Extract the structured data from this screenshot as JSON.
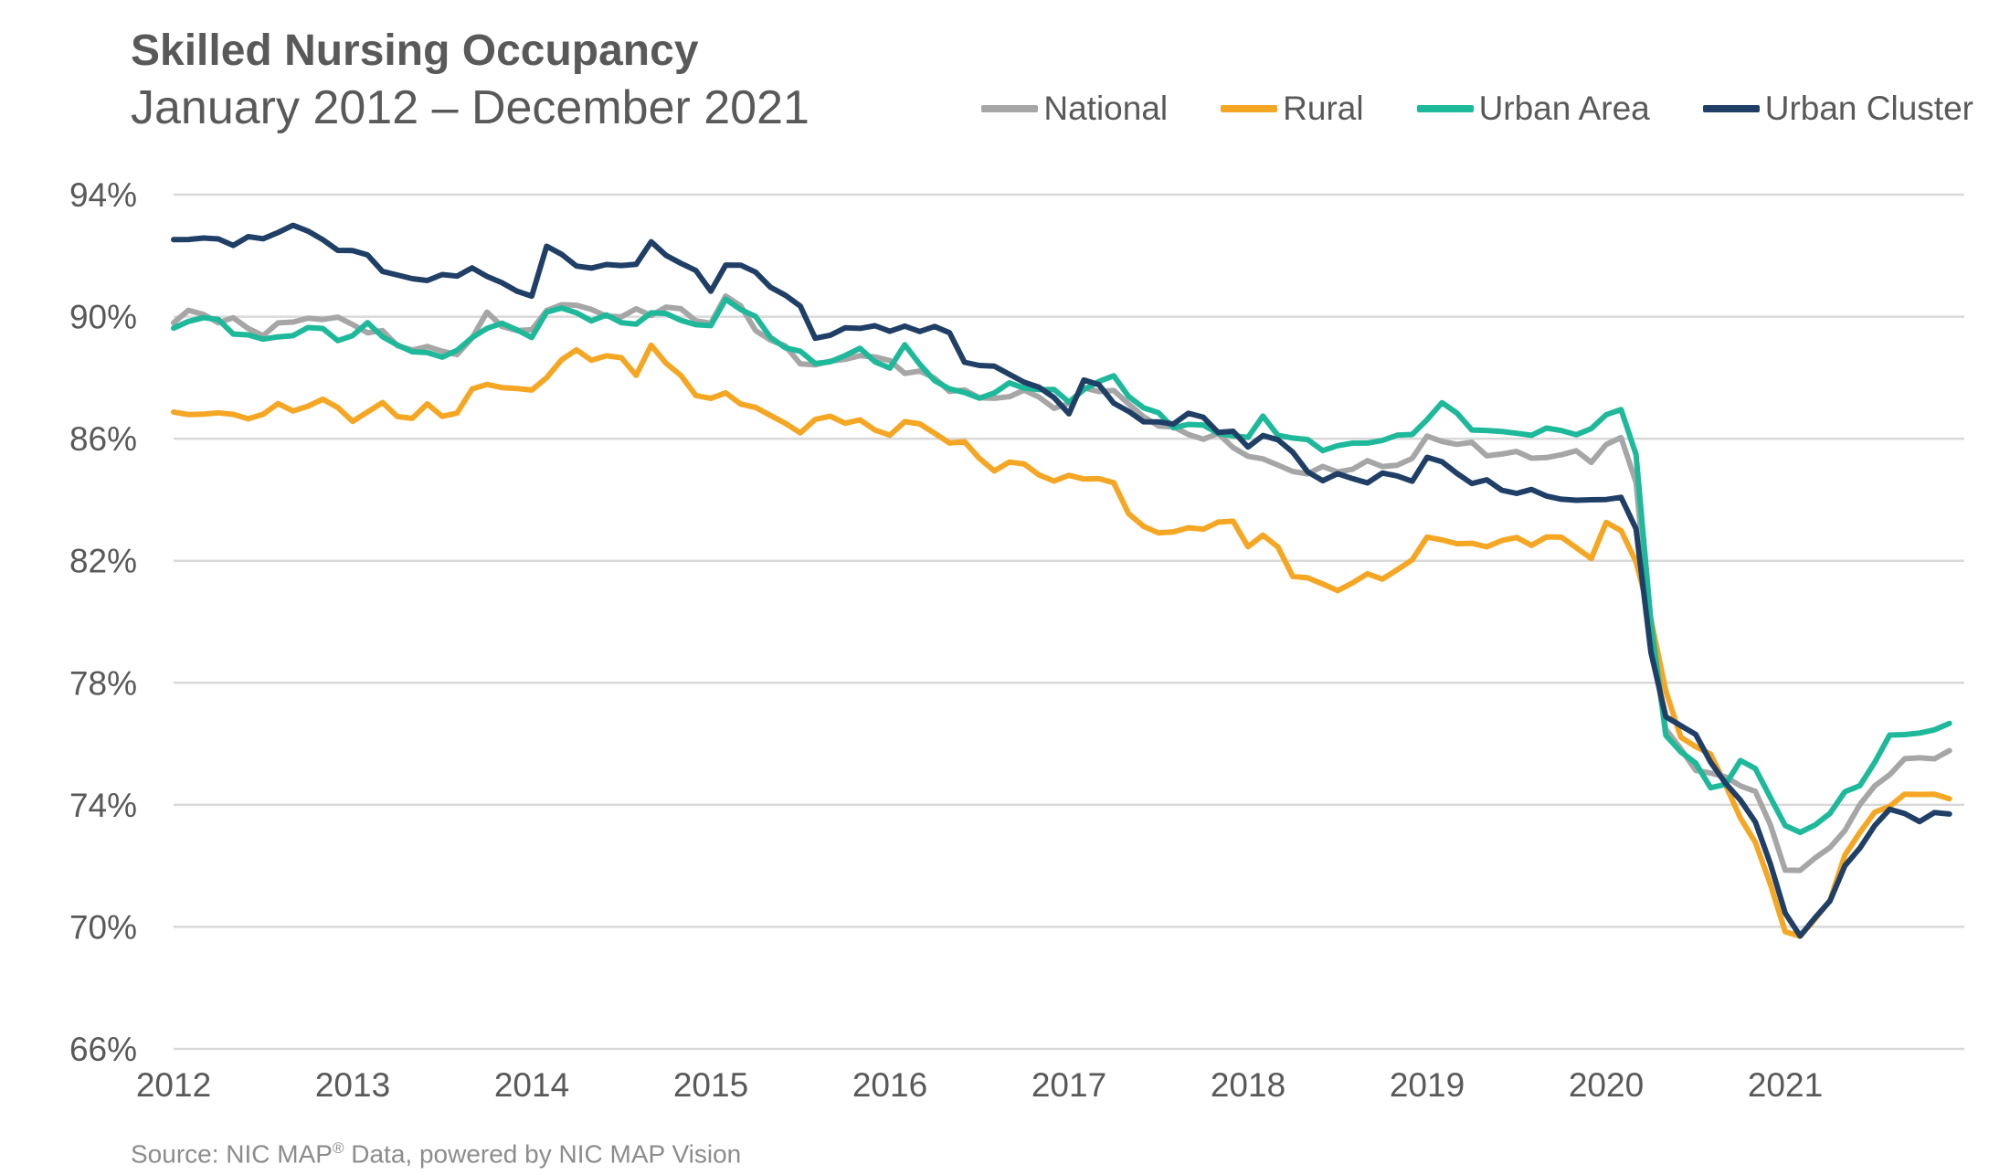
{
  "chart_data": {
    "type": "line",
    "title": "Skilled Nursing Occupancy",
    "subtitle": "January 2012 – December 2021",
    "source": {
      "prefix": "Source: NIC MAP",
      "sup": "®",
      "suffix": " Data, powered by NIC MAP Vision"
    },
    "ylim": [
      66,
      94
    ],
    "yticks": [
      94,
      90,
      86,
      82,
      78,
      74,
      70,
      66
    ],
    "ytick_labels": [
      "94%",
      "90%",
      "86%",
      "82%",
      "78%",
      "74%",
      "70%",
      "66%"
    ],
    "xlim": [
      2012,
      2022
    ],
    "xticks": [
      2012,
      2013,
      2014,
      2015,
      2016,
      2017,
      2018,
      2019,
      2020,
      2021
    ],
    "xtick_labels": [
      "2012",
      "2013",
      "2014",
      "2015",
      "2016",
      "2017",
      "2018",
      "2019",
      "2020",
      "2021"
    ],
    "grid": "horizontal",
    "legend": "top-right",
    "series": [
      {
        "name": "National",
        "color": "#A6A6A6",
        "knots": [
          [
            2012.0,
            89.8
          ],
          [
            2012.1,
            90.2
          ],
          [
            2012.5,
            89.5
          ],
          [
            2012.75,
            90.0
          ],
          [
            2013.0,
            89.8
          ],
          [
            2013.3,
            89.0
          ],
          [
            2013.6,
            88.8
          ],
          [
            2013.75,
            90.0
          ],
          [
            2014.0,
            89.4
          ],
          [
            2014.1,
            90.5
          ],
          [
            2014.5,
            90.0
          ],
          [
            2014.75,
            90.3
          ],
          [
            2015.0,
            89.8
          ],
          [
            2015.1,
            90.8
          ],
          [
            2015.3,
            89.3
          ],
          [
            2015.6,
            88.3
          ],
          [
            2015.8,
            88.8
          ],
          [
            2016.0,
            88.5
          ],
          [
            2016.3,
            87.8
          ],
          [
            2016.5,
            87.3
          ],
          [
            2016.75,
            87.5
          ],
          [
            2017.0,
            87.0
          ],
          [
            2017.1,
            87.8
          ],
          [
            2017.25,
            87.5
          ],
          [
            2017.4,
            86.8
          ],
          [
            2017.6,
            86.2
          ],
          [
            2017.8,
            86.1
          ],
          [
            2018.0,
            85.5
          ],
          [
            2018.2,
            85.0
          ],
          [
            2018.4,
            84.9
          ],
          [
            2018.6,
            85.1
          ],
          [
            2018.9,
            85.2
          ],
          [
            2019.0,
            86.0
          ],
          [
            2019.1,
            86.0
          ],
          [
            2019.3,
            85.6
          ],
          [
            2019.6,
            85.4
          ],
          [
            2019.85,
            85.5
          ],
          [
            2019.95,
            85.3
          ],
          [
            2020.0,
            85.8
          ],
          [
            2020.1,
            85.9
          ],
          [
            2020.17,
            84.5
          ],
          [
            2020.25,
            79.5
          ],
          [
            2020.33,
            76.5
          ],
          [
            2020.5,
            75.2
          ],
          [
            2020.67,
            74.8
          ],
          [
            2020.8,
            74.8
          ],
          [
            2020.9,
            73.5
          ],
          [
            2021.0,
            72.0
          ],
          [
            2021.08,
            71.8
          ],
          [
            2021.25,
            72.6
          ],
          [
            2021.4,
            73.8
          ],
          [
            2021.6,
            75.3
          ],
          [
            2021.75,
            75.5
          ],
          [
            2021.9,
            75.7
          ],
          [
            2021.99,
            76.0
          ]
        ]
      },
      {
        "name": "Rural",
        "color": "#F5A623",
        "knots": [
          [
            2012.0,
            86.7
          ],
          [
            2012.1,
            86.9
          ],
          [
            2012.4,
            86.7
          ],
          [
            2012.6,
            87.0
          ],
          [
            2012.9,
            87.2
          ],
          [
            2013.0,
            86.6
          ],
          [
            2013.2,
            87.2
          ],
          [
            2013.3,
            86.5
          ],
          [
            2013.4,
            87.0
          ],
          [
            2013.6,
            86.8
          ],
          [
            2013.7,
            87.9
          ],
          [
            2014.0,
            87.5
          ],
          [
            2014.1,
            88.3
          ],
          [
            2014.25,
            88.8
          ],
          [
            2014.5,
            88.6
          ],
          [
            2014.6,
            88.0
          ],
          [
            2014.67,
            89.2
          ],
          [
            2014.75,
            88.4
          ],
          [
            2015.0,
            87.2
          ],
          [
            2015.1,
            87.5
          ],
          [
            2015.3,
            86.8
          ],
          [
            2015.5,
            86.3
          ],
          [
            2015.7,
            86.8
          ],
          [
            2015.9,
            86.3
          ],
          [
            2016.0,
            86.2
          ],
          [
            2016.1,
            86.6
          ],
          [
            2016.4,
            85.8
          ],
          [
            2016.6,
            85.0
          ],
          [
            2016.75,
            85.2
          ],
          [
            2016.9,
            84.6
          ],
          [
            2017.0,
            84.7
          ],
          [
            2017.2,
            84.8
          ],
          [
            2017.35,
            83.5
          ],
          [
            2017.5,
            82.8
          ],
          [
            2017.7,
            83.2
          ],
          [
            2017.8,
            82.9
          ],
          [
            2017.9,
            83.6
          ],
          [
            2018.0,
            82.5
          ],
          [
            2018.15,
            82.8
          ],
          [
            2018.25,
            81.5
          ],
          [
            2018.5,
            81.1
          ],
          [
            2018.7,
            81.5
          ],
          [
            2018.85,
            81.7
          ],
          [
            2018.95,
            82.0
          ],
          [
            2019.0,
            82.9
          ],
          [
            2019.15,
            82.5
          ],
          [
            2019.4,
            82.6
          ],
          [
            2019.6,
            82.7
          ],
          [
            2019.8,
            82.7
          ],
          [
            2019.95,
            81.9
          ],
          [
            2020.0,
            83.2
          ],
          [
            2020.1,
            82.9
          ],
          [
            2020.2,
            81.5
          ],
          [
            2020.33,
            77.8
          ],
          [
            2020.4,
            76.3
          ],
          [
            2020.5,
            75.8
          ],
          [
            2020.6,
            75.6
          ],
          [
            2020.75,
            73.6
          ],
          [
            2020.85,
            72.5
          ],
          [
            2021.0,
            70.0
          ],
          [
            2021.08,
            69.5
          ],
          [
            2021.25,
            71.0
          ],
          [
            2021.35,
            72.5
          ],
          [
            2021.5,
            73.8
          ],
          [
            2021.7,
            74.3
          ],
          [
            2021.83,
            74.5
          ],
          [
            2021.92,
            74.0
          ],
          [
            2021.99,
            74.1
          ]
        ]
      },
      {
        "name": "Urban Area",
        "color": "#1DB99A",
        "knots": [
          [
            2012.0,
            89.5
          ],
          [
            2012.1,
            90.1
          ],
          [
            2012.5,
            89.2
          ],
          [
            2012.75,
            89.6
          ],
          [
            2013.0,
            89.3
          ],
          [
            2013.1,
            89.8
          ],
          [
            2013.3,
            88.8
          ],
          [
            2013.6,
            88.8
          ],
          [
            2013.75,
            89.8
          ],
          [
            2014.0,
            89.4
          ],
          [
            2014.1,
            90.3
          ],
          [
            2014.5,
            89.8
          ],
          [
            2014.75,
            90.1
          ],
          [
            2015.0,
            89.6
          ],
          [
            2015.1,
            90.8
          ],
          [
            2015.3,
            89.5
          ],
          [
            2015.6,
            88.4
          ],
          [
            2015.8,
            88.9
          ],
          [
            2016.0,
            88.4
          ],
          [
            2016.1,
            89.0
          ],
          [
            2016.3,
            87.6
          ],
          [
            2016.5,
            87.4
          ],
          [
            2016.75,
            87.8
          ],
          [
            2017.0,
            87.3
          ],
          [
            2017.1,
            87.7
          ],
          [
            2017.25,
            88.0
          ],
          [
            2017.45,
            86.8
          ],
          [
            2017.6,
            86.5
          ],
          [
            2017.8,
            86.3
          ],
          [
            2018.0,
            86.0
          ],
          [
            2018.1,
            86.8
          ],
          [
            2018.2,
            86.0
          ],
          [
            2018.5,
            85.7
          ],
          [
            2018.75,
            86.0
          ],
          [
            2018.95,
            86.1
          ],
          [
            2019.0,
            86.8
          ],
          [
            2019.1,
            87.1
          ],
          [
            2019.3,
            86.2
          ],
          [
            2019.6,
            86.2
          ],
          [
            2019.85,
            86.3
          ],
          [
            2019.95,
            86.1
          ],
          [
            2020.0,
            86.8
          ],
          [
            2020.1,
            87.1
          ],
          [
            2020.17,
            85.4
          ],
          [
            2020.25,
            80.0
          ],
          [
            2020.33,
            76.3
          ],
          [
            2020.5,
            75.2
          ],
          [
            2020.6,
            74.5
          ],
          [
            2020.67,
            74.8
          ],
          [
            2020.8,
            75.6
          ],
          [
            2020.9,
            74.5
          ],
          [
            2021.0,
            73.3
          ],
          [
            2021.08,
            73.0
          ],
          [
            2021.25,
            73.8
          ],
          [
            2021.4,
            74.6
          ],
          [
            2021.6,
            76.3
          ],
          [
            2021.75,
            76.4
          ],
          [
            2021.9,
            76.5
          ],
          [
            2021.99,
            76.8
          ]
        ]
      },
      {
        "name": "Urban Cluster",
        "color": "#1F3F66",
        "knots": [
          [
            2012.0,
            92.6
          ],
          [
            2012.2,
            92.5
          ],
          [
            2012.35,
            92.5
          ],
          [
            2012.5,
            92.5
          ],
          [
            2012.6,
            93.0
          ],
          [
            2012.8,
            92.7
          ],
          [
            2012.95,
            92.1
          ],
          [
            2013.1,
            92.0
          ],
          [
            2013.25,
            91.2
          ],
          [
            2013.4,
            91.3
          ],
          [
            2013.6,
            91.3
          ],
          [
            2013.7,
            91.8
          ],
          [
            2013.8,
            91.0
          ],
          [
            2014.0,
            90.8
          ],
          [
            2014.1,
            92.4
          ],
          [
            2014.3,
            91.5
          ],
          [
            2014.45,
            91.7
          ],
          [
            2014.6,
            91.8
          ],
          [
            2014.67,
            92.3
          ],
          [
            2014.8,
            92.0
          ],
          [
            2015.0,
            90.9
          ],
          [
            2015.1,
            91.9
          ],
          [
            2015.3,
            91.2
          ],
          [
            2015.45,
            90.6
          ],
          [
            2015.6,
            89.3
          ],
          [
            2015.8,
            89.6
          ],
          [
            2015.9,
            89.8
          ],
          [
            2016.0,
            89.5
          ],
          [
            2016.2,
            89.7
          ],
          [
            2016.3,
            89.6
          ],
          [
            2016.45,
            88.4
          ],
          [
            2016.6,
            88.3
          ],
          [
            2016.8,
            87.8
          ],
          [
            2016.9,
            87.3
          ],
          [
            2017.0,
            87.0
          ],
          [
            2017.1,
            88.0
          ],
          [
            2017.25,
            87.3
          ],
          [
            2017.4,
            86.5
          ],
          [
            2017.6,
            86.6
          ],
          [
            2017.7,
            86.8
          ],
          [
            2017.8,
            86.5
          ],
          [
            2017.95,
            86.0
          ],
          [
            2018.0,
            85.7
          ],
          [
            2018.1,
            86.3
          ],
          [
            2018.25,
            85.5
          ],
          [
            2018.35,
            84.8
          ],
          [
            2018.5,
            84.7
          ],
          [
            2018.7,
            84.7
          ],
          [
            2018.85,
            84.8
          ],
          [
            2018.95,
            84.6
          ],
          [
            2019.0,
            85.4
          ],
          [
            2019.1,
            85.1
          ],
          [
            2019.3,
            84.5
          ],
          [
            2019.5,
            84.3
          ],
          [
            2019.7,
            84.1
          ],
          [
            2019.85,
            84.0
          ],
          [
            2019.95,
            83.8
          ],
          [
            2020.0,
            84.1
          ],
          [
            2020.08,
            84.2
          ],
          [
            2020.17,
            83.0
          ],
          [
            2020.25,
            79.0
          ],
          [
            2020.33,
            76.9
          ],
          [
            2020.5,
            76.3
          ],
          [
            2020.6,
            75.3
          ],
          [
            2020.75,
            74.0
          ],
          [
            2020.85,
            73.5
          ],
          [
            2021.0,
            70.3
          ],
          [
            2021.08,
            69.8
          ],
          [
            2021.25,
            70.8
          ],
          [
            2021.35,
            72.2
          ],
          [
            2021.5,
            73.3
          ],
          [
            2021.6,
            73.8
          ],
          [
            2021.67,
            73.9
          ],
          [
            2021.75,
            73.4
          ],
          [
            2021.85,
            73.7
          ],
          [
            2021.99,
            73.9
          ]
        ]
      }
    ]
  }
}
